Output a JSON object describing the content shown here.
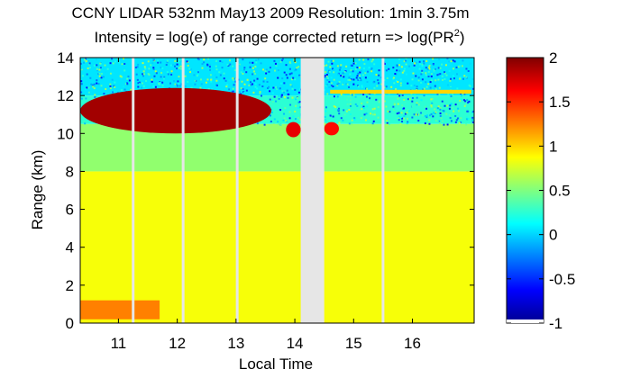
{
  "chart_data": {
    "type": "heatmap",
    "title": "CCNY LIDAR 532nm May13 2009 Resolution: 1min 3.75m",
    "subtitle_prefix": "Intensity = log(e) of range corrected return => log(PR",
    "subtitle_sup": "2",
    "subtitle_suffix": ")",
    "xlabel": "Local Time",
    "ylabel": "Range (km)",
    "xlim": [
      10.35,
      17.05
    ],
    "ylim": [
      0,
      14
    ],
    "xticks": [
      11,
      12,
      13,
      14,
      15,
      16
    ],
    "yticks": [
      0,
      2,
      4,
      6,
      8,
      10,
      12,
      14
    ],
    "colorbar": {
      "range": [
        -1,
        2
      ],
      "ticks": [
        -1,
        -0.5,
        0,
        0.5,
        1,
        1.5,
        2
      ],
      "tick_labels": [
        "-1",
        "-0.5",
        "0",
        "0.5",
        "1",
        "1.5",
        "2"
      ]
    },
    "data_gap": {
      "x": [
        14.1,
        14.5
      ],
      "color": "#e6e6e6"
    },
    "missing_profiles_x": [
      11.25,
      12.1,
      13.02,
      15.5
    ],
    "layers": [
      {
        "kind": "background",
        "y": [
          0,
          8
        ],
        "value": 0.85
      },
      {
        "kind": "background",
        "y": [
          8,
          10.5
        ],
        "value": 0.55
      },
      {
        "kind": "background",
        "y": [
          10.5,
          12
        ],
        "value": 0.25
      },
      {
        "kind": "background",
        "y": [
          12,
          14
        ],
        "value": 0.05
      },
      {
        "kind": "boundary_layer",
        "x": [
          10.35,
          11.7
        ],
        "y": [
          0.2,
          1.2
        ],
        "value": 1.25
      },
      {
        "kind": "cloud",
        "x": [
          10.35,
          13.6
        ],
        "y": [
          10.0,
          12.4
        ],
        "value": 1.9
      },
      {
        "kind": "cloud",
        "x": [
          13.85,
          14.1
        ],
        "y": [
          9.8,
          10.6
        ],
        "value": 1.7
      },
      {
        "kind": "cloud",
        "x": [
          14.5,
          14.75
        ],
        "y": [
          9.9,
          10.6
        ],
        "value": 1.6
      },
      {
        "kind": "thin_layer",
        "x": [
          14.6,
          17.0
        ],
        "y": [
          12.1,
          12.3
        ],
        "value": 1.0
      }
    ]
  }
}
